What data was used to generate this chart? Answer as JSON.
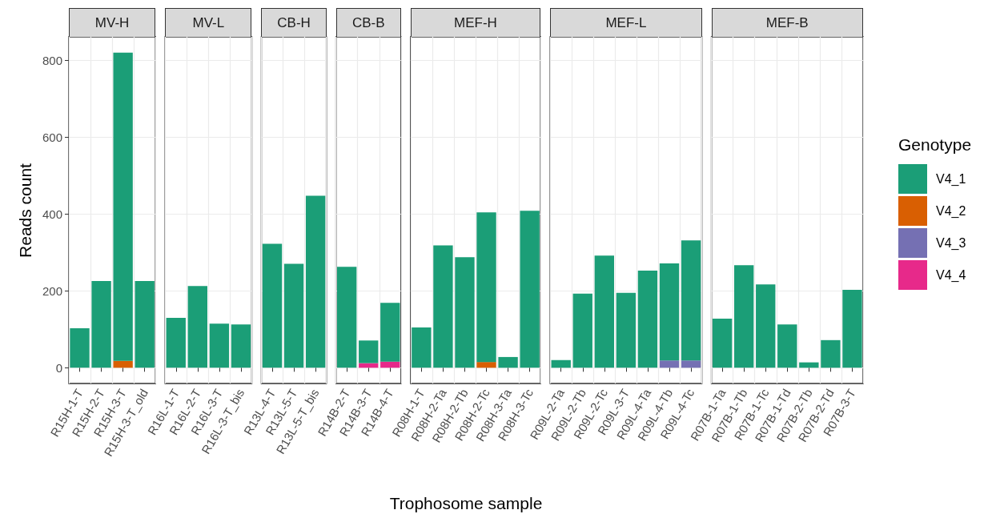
{
  "chart_data": [
    {
      "type": "bar",
      "title": "MV-H",
      "ylabel": "Reads count",
      "legend_title": "Genotype",
      "legend": "right",
      "stacked": true,
      "grid": true,
      "ylim": [
        -41,
        862
      ],
      "yticks": [
        0,
        200,
        400,
        600,
        800
      ],
      "categories": [
        "R15H-1-T",
        "R15H-2-T",
        "R15H-3-T",
        "R15H-3-T_old"
      ],
      "series": [
        {
          "name": "V4_4",
          "color": "#e7298a",
          "values": [
            null,
            null,
            null,
            null
          ]
        },
        {
          "name": "V4_3",
          "color": "#7570b3",
          "values": [
            null,
            null,
            null,
            null
          ]
        },
        {
          "name": "V4_2",
          "color": "#d95f02",
          "values": [
            null,
            null,
            18,
            null
          ]
        },
        {
          "name": "V4_1",
          "color": "#1b9e77",
          "values": [
            103,
            226,
            803,
            226
          ]
        }
      ]
    },
    {
      "type": "bar",
      "title": "MV-L",
      "stacked": true,
      "grid": true,
      "tick_labels": "x",
      "ylim": [
        -41,
        862
      ],
      "yticks": [
        0,
        200,
        400,
        600,
        800
      ],
      "categories": [
        "R16L-1-T",
        "R16L-2-T",
        "R16L-3-T",
        "R16L-3-T_bis"
      ],
      "series": [
        {
          "color": "#1b9e77",
          "values": [
            130,
            213,
            115,
            113
          ]
        }
      ]
    },
    {
      "type": "bar",
      "title": "CB-H",
      "stacked": true,
      "grid": true,
      "tick_labels": "x",
      "ylim": [
        -41,
        862
      ],
      "yticks": [
        0,
        200,
        400,
        600,
        800
      ],
      "categories": [
        "R13L-4-T",
        "R13L-5-T",
        "R13L-5-T_bis"
      ],
      "series": [
        {
          "color": "#1b9e77",
          "values": [
            323,
            271,
            448
          ]
        }
      ]
    },
    {
      "type": "bar",
      "title": "CB-B",
      "xlabel": "Trophosome sample",
      "stacked": true,
      "grid": true,
      "tick_labels": "x",
      "ylim": [
        -41,
        862
      ],
      "yticks": [
        0,
        200,
        400,
        600,
        800
      ],
      "categories": [
        "R14B-2-T",
        "R14B-3-T",
        "R14B-4-T"
      ],
      "series": [
        {
          "color": "#e7298a",
          "values": [
            null,
            12,
            16
          ]
        },
        {
          "color": "#1b9e77",
          "values": [
            263,
            59,
            153
          ]
        }
      ]
    },
    {
      "type": "bar",
      "title": "MEF-H",
      "stacked": true,
      "grid": true,
      "tick_labels": "x",
      "ylim": [
        -41,
        862
      ],
      "yticks": [
        0,
        200,
        400,
        600,
        800
      ],
      "categories": [
        "R08H-1-T",
        "R08H-2-Ta",
        "R08H-2-Tb",
        "R08H-2-Tc",
        "R08H-3-Ta",
        "R08H-3-Tc"
      ],
      "series": [
        {
          "color": "#d95f02",
          "values": [
            null,
            null,
            null,
            15,
            null,
            null
          ]
        },
        {
          "color": "#1b9e77",
          "values": [
            105,
            319,
            288,
            390,
            28,
            409
          ]
        }
      ]
    },
    {
      "type": "bar",
      "title": "MEF-L",
      "stacked": true,
      "grid": true,
      "tick_labels": "x",
      "ylim": [
        -41,
        862
      ],
      "yticks": [
        0,
        200,
        400,
        600,
        800
      ],
      "categories": [
        "R09L-2-Ta",
        "R09L-2-Tb",
        "R09L-2-Tc",
        "R09L-3-T",
        "R09L-4-Ta",
        "R09L-4-Tb",
        "R09L-4-Tc"
      ],
      "series": [
        {
          "color": "#7570b3",
          "values": [
            null,
            null,
            null,
            null,
            null,
            19,
            19
          ]
        },
        {
          "color": "#1b9e77",
          "values": [
            20,
            193,
            292,
            195,
            253,
            253,
            313
          ]
        }
      ]
    },
    {
      "type": "bar",
      "title": "MEF-B",
      "stacked": true,
      "grid": true,
      "tick_labels": "x",
      "ylim": [
        -41,
        862
      ],
      "yticks": [
        0,
        200,
        400,
        600,
        800
      ],
      "categories": [
        "R07B-1-Ta",
        "R07B-1-Tb",
        "R07B-1-Tc",
        "R07B-1-Td",
        "R07B-2-Tb",
        "R07B-2-Td",
        "R07B-3-T"
      ],
      "series": [
        {
          "color": "#1b9e77",
          "values": [
            128,
            267,
            217,
            113,
            14,
            72,
            203
          ]
        }
      ]
    }
  ]
}
